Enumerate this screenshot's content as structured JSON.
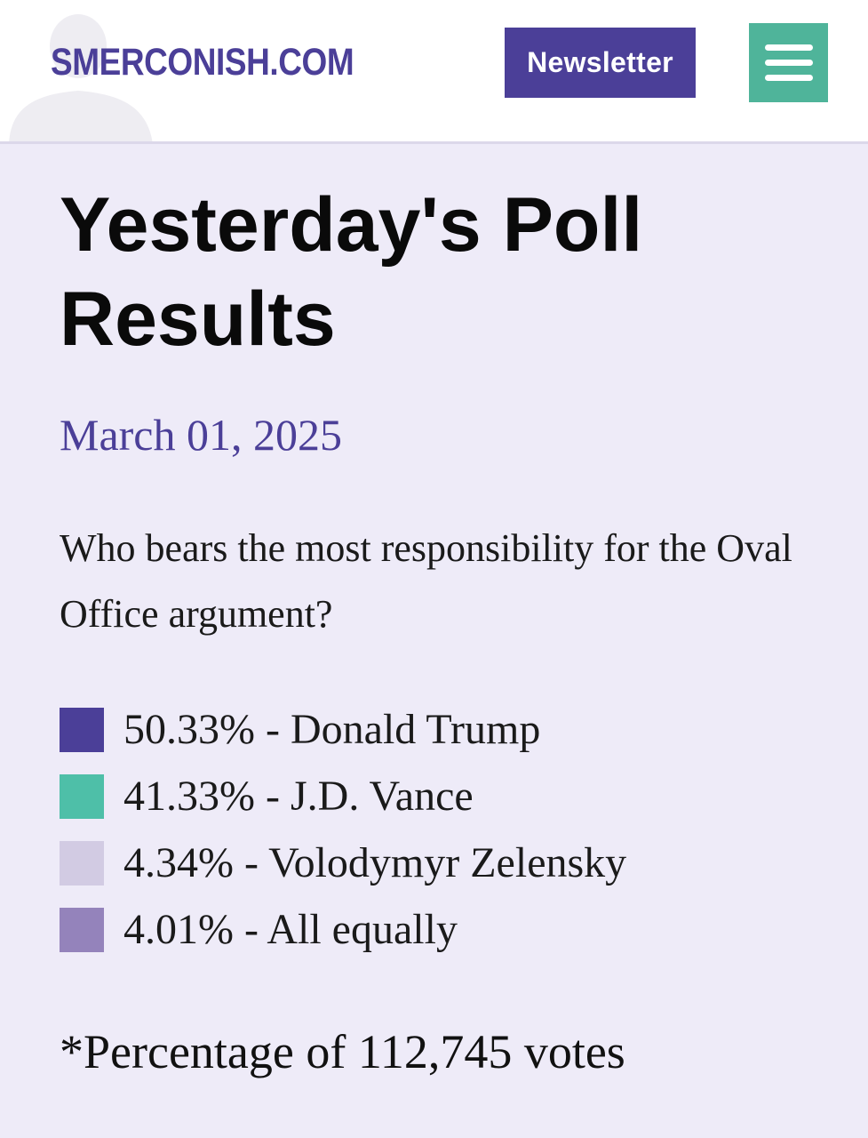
{
  "header": {
    "logo_text": "SMERCONISH.COM",
    "newsletter_label": "Newsletter",
    "menu_icon": "hamburger-menu-icon"
  },
  "poll": {
    "title": "Yesterday's Poll Results",
    "date": "March 01, 2025",
    "question": "Who bears the most responsibility for the Oval Office argument?",
    "results": [
      {
        "label": "50.33% - Donald Trump",
        "percent": 50.33,
        "color": "#4b3f98"
      },
      {
        "label": "41.33% - J.D. Vance",
        "percent": 41.33,
        "color": "#4ebfa8"
      },
      {
        "label": "4.34% - Volodymyr Zelensky",
        "percent": 4.34,
        "color": "#d2cbe3"
      },
      {
        "label": "4.01% - All equally",
        "percent": 4.01,
        "color": "#9483bb"
      }
    ],
    "footnote": "*Percentage of 112,745 votes"
  },
  "colors": {
    "brand": "#4b3f98",
    "accent": "#4fb49a",
    "background": "#eeebf8"
  }
}
